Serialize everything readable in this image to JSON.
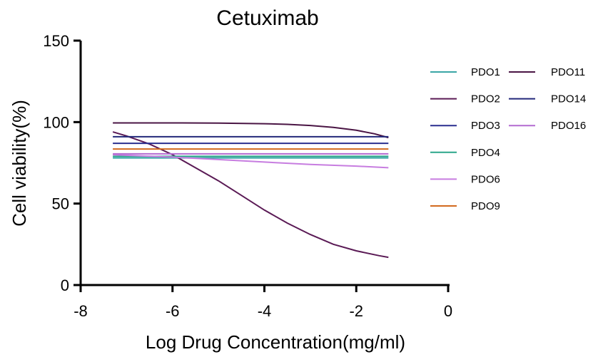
{
  "chart_data": {
    "type": "line",
    "title": "Cetuximab",
    "xlabel": "Log Drug Concentration(mg/ml)",
    "ylabel": "Cell viability(%)",
    "xlim": [
      -8,
      0
    ],
    "ylim": [
      0,
      150
    ],
    "xticks": [
      -8,
      -6,
      -4,
      -2,
      0
    ],
    "yticks": [
      0,
      50,
      100,
      150
    ],
    "grid": false,
    "legend_position": "right",
    "series": [
      {
        "name": "PDO1",
        "color": "#3aa6a6",
        "x": [
          -7.3,
          -1.3
        ],
        "y": [
          78,
          78
        ]
      },
      {
        "name": "PDO2",
        "color": "#5a1a55",
        "x": [
          -7.3,
          -7.0,
          -6.5,
          -6.0,
          -5.5,
          -5.0,
          -4.5,
          -4.0,
          -3.5,
          -3.0,
          -2.5,
          -2.0,
          -1.5,
          -1.3
        ],
        "y": [
          94,
          91.5,
          86.5,
          80,
          72,
          64,
          55,
          46,
          38,
          31,
          25,
          21,
          18,
          17
        ]
      },
      {
        "name": "PDO3",
        "color": "#2a2f8f",
        "x": [
          -7.3,
          -1.3
        ],
        "y": [
          87,
          87
        ]
      },
      {
        "name": "PDO4",
        "color": "#2aa58a",
        "x": [
          -7.3,
          -1.3
        ],
        "y": [
          79,
          79
        ]
      },
      {
        "name": "PDO6",
        "color": "#c77de0",
        "x": [
          -7.3,
          -6.0,
          -5.0,
          -4.0,
          -3.0,
          -2.0,
          -1.3
        ],
        "y": [
          80,
          78.5,
          77,
          75.5,
          74,
          73,
          72
        ]
      },
      {
        "name": "PDO9",
        "color": "#d2691e",
        "x": [
          -7.3,
          -1.3
        ],
        "y": [
          83.5,
          83.5
        ]
      },
      {
        "name": "PDO11",
        "color": "#4a1544",
        "x": [
          -7.3,
          -6.0,
          -5.0,
          -4.0,
          -3.5,
          -3.0,
          -2.5,
          -2.0,
          -1.6,
          -1.3
        ],
        "y": [
          99.5,
          99.5,
          99.4,
          99,
          98.6,
          97.9,
          96.8,
          95,
          92.8,
          90.5
        ]
      },
      {
        "name": "PDO14",
        "color": "#22287a",
        "x": [
          -7.3,
          -1.3
        ],
        "y": [
          91,
          91
        ]
      },
      {
        "name": "PDO16",
        "color": "#b36ad0",
        "x": [
          -7.3,
          -1.3
        ],
        "y": [
          80.5,
          80.5
        ]
      }
    ]
  }
}
